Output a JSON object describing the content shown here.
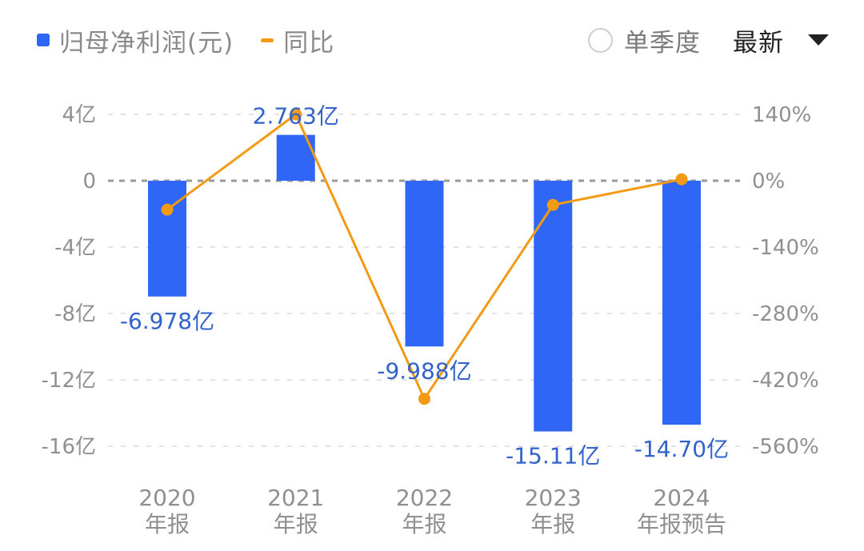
{
  "legend": {
    "items": [
      {
        "label": "归母净利润(元)",
        "marker": "square",
        "color": "#2f66f6"
      },
      {
        "label": "同比",
        "marker": "line",
        "color": "#f39a14"
      }
    ]
  },
  "controls": {
    "single_quarter": {
      "label": "单季度",
      "checked": false
    },
    "sort_select": {
      "value": "最新",
      "icon": "caret-down-icon"
    }
  },
  "chart_data": {
    "type": "bar+line",
    "title": "",
    "categories": [
      "2020 年报",
      "2021 年报",
      "2022 年报",
      "2023 年报",
      "2024 年报预告"
    ],
    "category_lines": [
      [
        "2020",
        "年报"
      ],
      [
        "2021",
        "年报"
      ],
      [
        "2022",
        "年报"
      ],
      [
        "2023",
        "年报"
      ],
      [
        "2024",
        "年报预告"
      ]
    ],
    "series": [
      {
        "name": "归母净利润(元)",
        "type": "bar",
        "axis": "left",
        "color": "#2f66f6",
        "values": [
          -6.978,
          2.763,
          -9.988,
          -15.11,
          -14.7
        ],
        "unit": "亿",
        "labels": [
          "-6.978亿",
          "2.763亿",
          "-9.988亿",
          "-15.11亿",
          "-14.70亿"
        ]
      },
      {
        "name": "同比",
        "type": "line",
        "axis": "right",
        "color": "#f39a14",
        "values": [
          -61,
          140,
          -460,
          -51,
          3
        ],
        "unit": "%"
      }
    ],
    "left_axis": {
      "ticks": [
        "4亿",
        "0",
        "-4亿",
        "-8亿",
        "-12亿",
        "-16亿"
      ],
      "values": [
        4,
        0,
        -4,
        -8,
        -12,
        -16
      ],
      "ylim": [
        -16,
        4
      ]
    },
    "right_axis": {
      "ticks": [
        "140%",
        "0%",
        "-140%",
        "-280%",
        "-420%",
        "-560%"
      ],
      "values": [
        140,
        0,
        -140,
        -280,
        -420,
        -560
      ],
      "ylim": [
        -560,
        140
      ]
    },
    "grid": true,
    "legend_position": "top-left"
  }
}
